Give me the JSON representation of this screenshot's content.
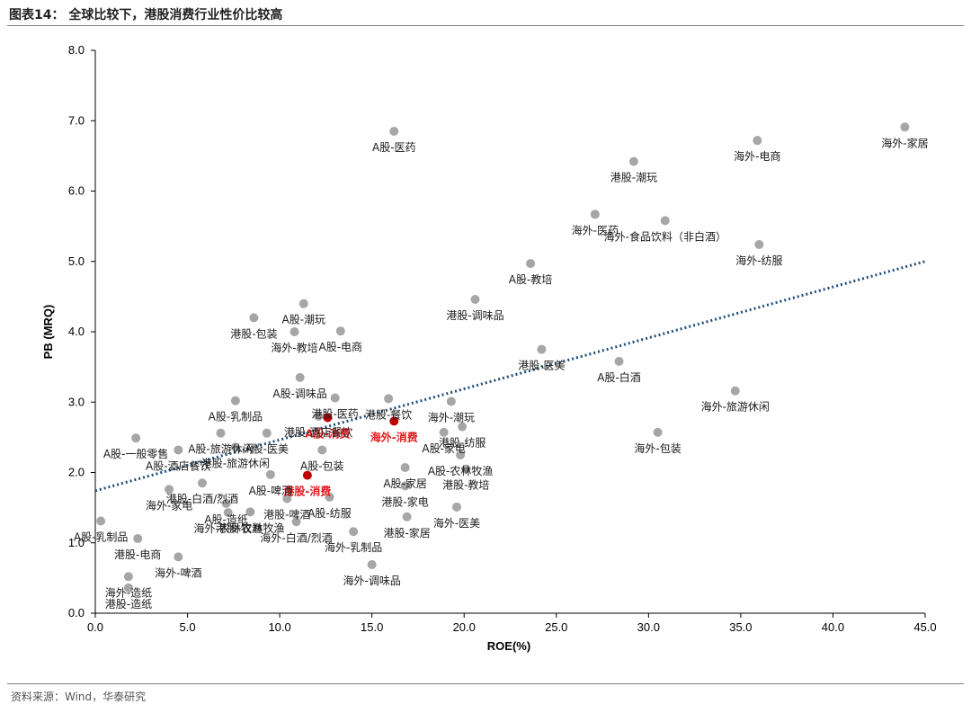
{
  "header": {
    "title": "图表14： 全球比较下，港股消费行业性价比较高"
  },
  "footer": {
    "source": "资料来源：Wind，华泰研究"
  },
  "chart_data": {
    "type": "scatter",
    "xlabel": "ROE(%)",
    "ylabel": "PB (MRQ)",
    "xlim": [
      0,
      45
    ],
    "ylim": [
      0,
      8
    ],
    "x_ticks": [
      "0.0",
      "5.0",
      "10.0",
      "15.0",
      "20.0",
      "25.0",
      "30.0",
      "35.0",
      "40.0",
      "45.0"
    ],
    "y_ticks": [
      "0.0",
      "1.0",
      "2.0",
      "3.0",
      "4.0",
      "5.0",
      "6.0",
      "7.0",
      "8.0"
    ],
    "grid": false,
    "colors": {
      "point": "#a6a6a6",
      "highlight": "#c00000",
      "trend": "#1f4e79",
      "highlight_text": "#e31a1c"
    },
    "trendline": {
      "style": "dotted",
      "x": [
        0,
        45
      ],
      "y": [
        1.74,
        5.0
      ]
    },
    "points": [
      {
        "label": "A股-医药",
        "x": 16.2,
        "y": 6.85
      },
      {
        "label": "海外-家居",
        "x": 43.9,
        "y": 6.91
      },
      {
        "label": "海外-电商",
        "x": 35.9,
        "y": 6.72
      },
      {
        "label": "港股-潮玩",
        "x": 29.2,
        "y": 6.42
      },
      {
        "label": "海外-医药",
        "x": 27.1,
        "y": 5.67
      },
      {
        "label": "海外-食品饮料（非白酒）",
        "x": 30.9,
        "y": 5.58
      },
      {
        "label": "海外-纺服",
        "x": 36.0,
        "y": 5.24
      },
      {
        "label": "A股-教培",
        "x": 23.6,
        "y": 4.97
      },
      {
        "label": "港股-调味品",
        "x": 20.6,
        "y": 4.46
      },
      {
        "label": "A股-潮玩",
        "x": 11.3,
        "y": 4.4
      },
      {
        "label": "港股-包装",
        "x": 8.6,
        "y": 4.2
      },
      {
        "label": "A股-电商",
        "x": 13.3,
        "y": 4.01
      },
      {
        "label": "海外-教培",
        "x": 10.8,
        "y": 4.0
      },
      {
        "label": "港股-医美",
        "x": 24.2,
        "y": 3.75
      },
      {
        "label": "A股-白酒",
        "x": 28.4,
        "y": 3.58
      },
      {
        "label": "A股-调味品",
        "x": 11.1,
        "y": 3.35
      },
      {
        "label": "海外-潮玩",
        "x": 19.3,
        "y": 3.01
      },
      {
        "label": "海外-旅游休闲",
        "x": 34.7,
        "y": 3.16
      },
      {
        "label": "港股-医药",
        "x": 13.0,
        "y": 3.06
      },
      {
        "label": "A股-乳制品",
        "x": 7.6,
        "y": 3.02
      },
      {
        "label": "港股-餐饮",
        "x": 15.9,
        "y": 3.05
      },
      {
        "label": "A股-消费",
        "x": 12.6,
        "y": 2.78,
        "highlight": true
      },
      {
        "label": "港股-酒店餐饮",
        "x": 12.1,
        "y": 2.8
      },
      {
        "label": "海外-消费",
        "x": 16.2,
        "y": 2.73,
        "highlight": true
      },
      {
        "label": "港股-纺服",
        "x": 19.9,
        "y": 2.65
      },
      {
        "label": "A股-医美",
        "x": 9.3,
        "y": 2.56
      },
      {
        "label": "A股-家电",
        "x": 18.9,
        "y": 2.57
      },
      {
        "label": "A股-一般零售",
        "x": 2.2,
        "y": 2.49
      },
      {
        "label": "A股-旅游休闲",
        "x": 6.8,
        "y": 2.56
      },
      {
        "label": "A股-农林牧渔",
        "x": 19.8,
        "y": 2.25
      },
      {
        "label": "港股-旅游休闲",
        "x": 7.6,
        "y": 2.36
      },
      {
        "label": "海外-包装",
        "x": 30.5,
        "y": 2.57
      },
      {
        "label": "A股-酒店餐饮",
        "x": 4.5,
        "y": 2.32
      },
      {
        "label": "A股-包装",
        "x": 12.3,
        "y": 2.32
      },
      {
        "label": "港股-消费",
        "x": 11.5,
        "y": 1.96,
        "highlight": true
      },
      {
        "label": "A股-家居",
        "x": 16.8,
        "y": 2.07
      },
      {
        "label": "A股-啤酒",
        "x": 9.5,
        "y": 1.97
      },
      {
        "label": "港股-教培",
        "x": 20.1,
        "y": 2.05
      },
      {
        "label": "港股-白酒/烈酒",
        "x": 5.8,
        "y": 1.85
      },
      {
        "label": "海外-家电",
        "x": 4.0,
        "y": 1.76
      },
      {
        "label": "A股-造纸",
        "x": 7.1,
        "y": 1.56
      },
      {
        "label": "港股-啤酒",
        "x": 10.4,
        "y": 1.63
      },
      {
        "label": "港股-农林牧渔",
        "x": 8.4,
        "y": 1.44
      },
      {
        "label": "海外-农林牧渔",
        "x": 7.2,
        "y": 1.43
      },
      {
        "label": "A股-纺服",
        "x": 12.7,
        "y": 1.65
      },
      {
        "label": "港股-家电",
        "x": 16.8,
        "y": 1.81
      },
      {
        "label": "海外-医美",
        "x": 19.6,
        "y": 1.51
      },
      {
        "label": "港股-家居",
        "x": 16.9,
        "y": 1.37
      },
      {
        "label": "海外-白酒/烈酒",
        "x": 10.9,
        "y": 1.3
      },
      {
        "label": "A股-乳制品",
        "x": 0.3,
        "y": 1.31
      },
      {
        "label": "港股-电商",
        "x": 2.3,
        "y": 1.06
      },
      {
        "label": "海外-乳制品",
        "x": 14.0,
        "y": 1.16
      },
      {
        "label": "海外-啤酒",
        "x": 4.5,
        "y": 0.8
      },
      {
        "label": "海外-造纸",
        "x": 1.8,
        "y": 0.52
      },
      {
        "label": "港股-造纸",
        "x": 1.8,
        "y": 0.36
      },
      {
        "label": "海外-调味品",
        "x": 15.0,
        "y": 0.69
      }
    ]
  }
}
